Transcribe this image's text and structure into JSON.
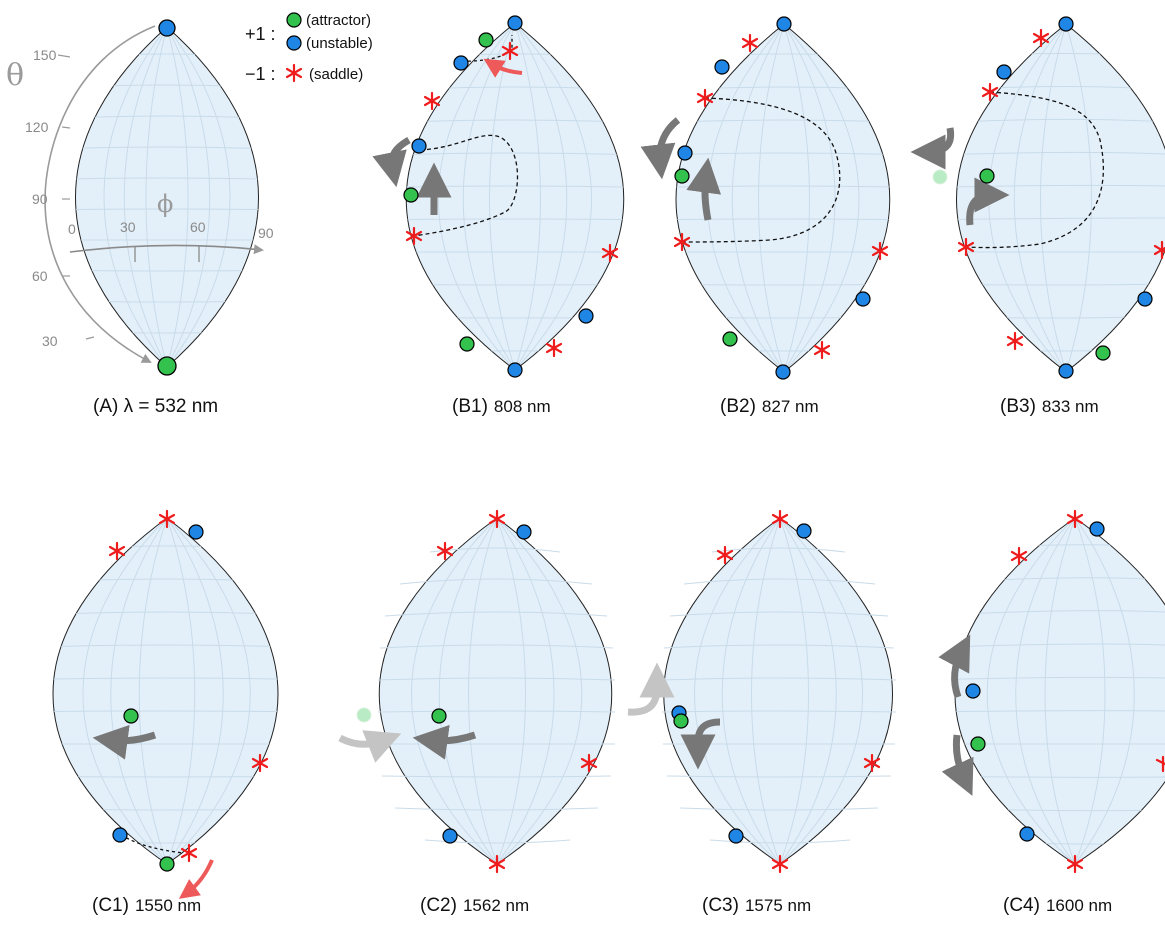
{
  "legend": {
    "plus_label": "+1 :",
    "minus_label": "−1 :",
    "attractor": "(attractor)",
    "unstable": "(unstable)",
    "saddle": "(saddle)"
  },
  "axes": {
    "theta_symbol": "θ",
    "phi_symbol": "ϕ",
    "theta_ticks": [
      "150",
      "120",
      "90",
      "60",
      "30"
    ],
    "phi_ticks": [
      "0",
      "30",
      "60",
      "90"
    ]
  },
  "colors": {
    "sphere_fill": "#e3f0fa",
    "grid": "#c9dbe9",
    "attractor": "#33c24e",
    "unstable": "#1f86e6",
    "saddle": "#ee1c1c",
    "flow_arrow": "#777777",
    "red_arrow": "#ee5a5a"
  },
  "panels": [
    {
      "id": "A",
      "caption_prefix": "(A) λ = 532 nm",
      "caption_nm": ""
    },
    {
      "id": "B1",
      "caption_prefix": "(B1)",
      "caption_nm": "808 nm"
    },
    {
      "id": "B2",
      "caption_prefix": "(B2)",
      "caption_nm": "827 nm"
    },
    {
      "id": "B3",
      "caption_prefix": "(B3)",
      "caption_nm": "833 nm"
    },
    {
      "id": "C1",
      "caption_prefix": "(C1)",
      "caption_nm": "1550 nm"
    },
    {
      "id": "C2",
      "caption_prefix": "(C2)",
      "caption_nm": "1562 nm"
    },
    {
      "id": "C3",
      "caption_prefix": "(C3)",
      "caption_nm": "1575 nm"
    },
    {
      "id": "C4",
      "caption_prefix": "(C4)",
      "caption_nm": "1600 nm"
    }
  ]
}
